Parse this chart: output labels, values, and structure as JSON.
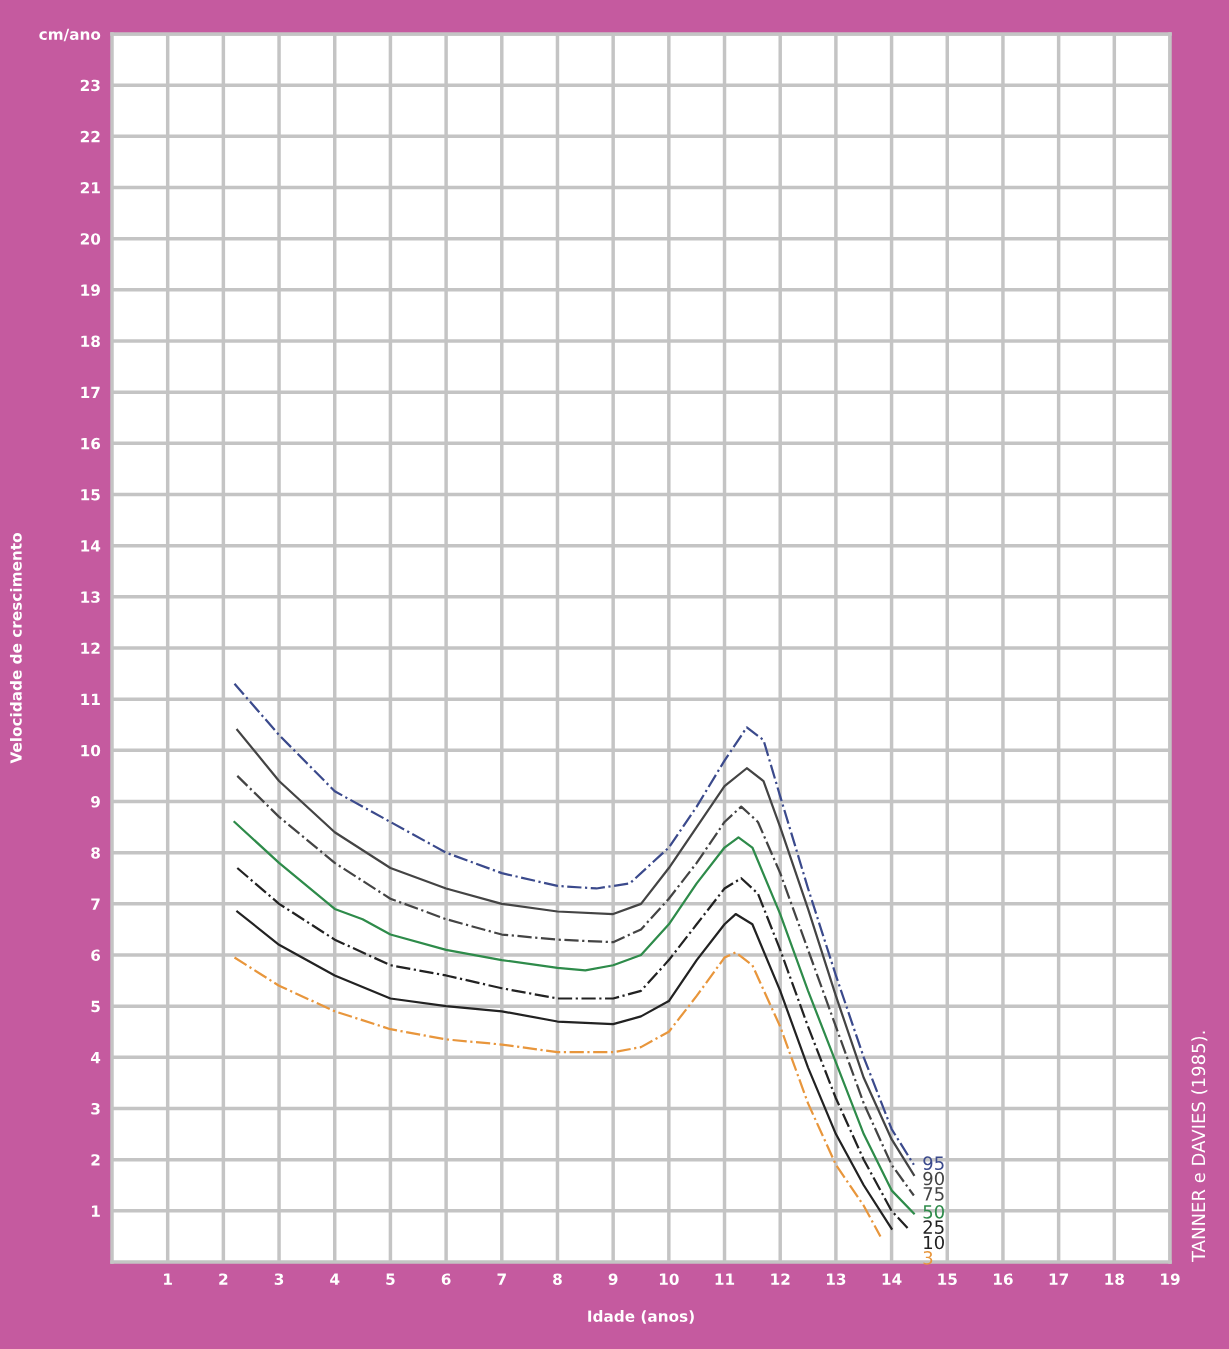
{
  "chart_data": {
    "type": "line",
    "xlabel": "Idade (anos)",
    "ylabel": "Velocidade de crescimento",
    "xlim": [
      0,
      19
    ],
    "ylim": [
      0,
      24
    ],
    "xticks": [
      1,
      2,
      3,
      4,
      5,
      6,
      7,
      8,
      9,
      10,
      11,
      12,
      13,
      14,
      15,
      16,
      17,
      18,
      19
    ],
    "yticks": [
      1,
      2,
      3,
      4,
      5,
      6,
      7,
      8,
      9,
      10,
      11,
      12,
      13,
      14,
      15,
      16,
      17,
      18,
      19,
      20,
      21,
      22,
      23,
      {
        "value": 24,
        "label": "cm/ano"
      }
    ],
    "grid": true,
    "legend": false,
    "marker": "none",
    "annotations": [
      "TANNER e DAVIES (1985)."
    ],
    "series": [
      {
        "name": "95",
        "color": "#3b4a8c",
        "line_style": "dashed",
        "x": [
          2.2,
          3,
          4,
          5,
          6,
          7,
          8,
          8.7,
          9.3,
          10,
          10.5,
          11,
          11.4,
          11.7,
          12,
          12.5,
          13,
          13.5,
          14,
          14.4
        ],
        "values": [
          11.3,
          10.3,
          9.2,
          8.6,
          8.0,
          7.6,
          7.35,
          7.3,
          7.4,
          8.1,
          8.9,
          9.8,
          10.45,
          10.2,
          9.1,
          7.3,
          5.6,
          4.0,
          2.6,
          1.9
        ]
      },
      {
        "name": "90",
        "color": "#444444",
        "line_style": "solid",
        "x": [
          2.25,
          3,
          4,
          5,
          6,
          7,
          8,
          9,
          9.5,
          10,
          10.5,
          11,
          11.4,
          11.7,
          12,
          12.5,
          13,
          13.5,
          14,
          14.4
        ],
        "values": [
          10.4,
          9.4,
          8.4,
          7.7,
          7.3,
          7.0,
          6.85,
          6.8,
          7.0,
          7.7,
          8.5,
          9.3,
          9.65,
          9.4,
          8.5,
          6.9,
          5.2,
          3.6,
          2.4,
          1.7
        ]
      },
      {
        "name": "75",
        "color": "#444444",
        "line_style": "dashed",
        "x": [
          2.25,
          3,
          4,
          5,
          6,
          7,
          8,
          9,
          9.5,
          10,
          10.5,
          11,
          11.3,
          11.6,
          12,
          12.5,
          13,
          13.5,
          14,
          14.4
        ],
        "values": [
          9.5,
          8.7,
          7.8,
          7.1,
          6.7,
          6.4,
          6.3,
          6.25,
          6.5,
          7.1,
          7.8,
          8.6,
          8.9,
          8.6,
          7.6,
          6.1,
          4.6,
          3.1,
          1.9,
          1.3
        ]
      },
      {
        "name": "50",
        "color": "#2e8b4a",
        "line_style": "solid",
        "x": [
          2.2,
          3,
          4,
          4.5,
          5,
          6,
          7,
          8,
          8.5,
          9,
          9.5,
          10,
          10.5,
          11,
          11.25,
          11.5,
          12,
          12.5,
          13,
          13.5,
          14,
          14.4
        ],
        "values": [
          8.6,
          7.8,
          6.9,
          6.7,
          6.4,
          6.1,
          5.9,
          5.75,
          5.7,
          5.8,
          6.0,
          6.6,
          7.4,
          8.1,
          8.3,
          8.1,
          6.8,
          5.3,
          3.9,
          2.5,
          1.4,
          0.95
        ]
      },
      {
        "name": "25",
        "color": "#222222",
        "line_style": "dashed",
        "x": [
          2.25,
          3,
          4,
          5,
          6,
          7,
          8,
          9,
          9.5,
          10,
          10.5,
          11,
          11.3,
          11.6,
          12,
          12.5,
          13,
          13.5,
          14,
          14.3
        ],
        "values": [
          7.7,
          7.0,
          6.3,
          5.8,
          5.6,
          5.35,
          5.15,
          5.15,
          5.3,
          5.9,
          6.6,
          7.3,
          7.5,
          7.2,
          6.1,
          4.6,
          3.2,
          2.0,
          1.0,
          0.65
        ]
      },
      {
        "name": "10",
        "color": "#222222",
        "line_style": "solid",
        "x": [
          2.25,
          3,
          4,
          5,
          6,
          7,
          8,
          9,
          9.5,
          10,
          10.5,
          11,
          11.2,
          11.5,
          12,
          12.5,
          13,
          13.5,
          14
        ],
        "values": [
          6.85,
          6.2,
          5.6,
          5.15,
          5.0,
          4.9,
          4.7,
          4.65,
          4.8,
          5.1,
          5.9,
          6.6,
          6.8,
          6.6,
          5.3,
          3.8,
          2.5,
          1.5,
          0.65
        ]
      },
      {
        "name": "3",
        "color": "#e8963c",
        "line_style": "dashed",
        "x": [
          2.2,
          3,
          4,
          5,
          6,
          7,
          8,
          9,
          9.5,
          10,
          10.5,
          11,
          11.2,
          11.5,
          12,
          12.5,
          13,
          13.5,
          13.8
        ],
        "values": [
          5.95,
          5.4,
          4.9,
          4.55,
          4.35,
          4.25,
          4.1,
          4.1,
          4.2,
          4.5,
          5.2,
          5.95,
          6.05,
          5.8,
          4.6,
          3.1,
          1.9,
          1.1,
          0.5
        ]
      }
    ]
  }
}
